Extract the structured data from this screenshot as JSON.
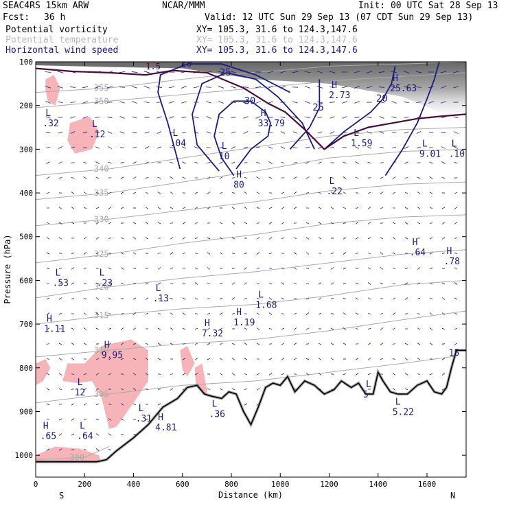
{
  "header": {
    "model": "SEAC4RS 15km ARW",
    "org": "NCAR/MMM",
    "init": "Init: 00 UTC Sat 28 Sep 13",
    "fcst_label": "Fcst:",
    "fcst_value": "36 h",
    "valid": "Valid: 12 UTC Sun 29 Sep 13 (07 CDT Sun 29 Sep 13)"
  },
  "fields": [
    {
      "name": "Potential vorticity",
      "xy": "XY= 105.3, 31.6 to 124.3,147.6",
      "color": "#000000"
    },
    {
      "name": "Potential temperature",
      "xy": "XY= 105.3, 31.6 to 124.3,147.6",
      "color": "#b8b8b8"
    },
    {
      "name": "Horizontal wind speed",
      "xy": "XY= 105.3, 31.6 to 124.3,147.6",
      "color": "#1a1a80"
    }
  ],
  "chart_data": {
    "type": "cross-section",
    "xlabel": "Distance (km)",
    "ylabel": "Pressure (hPa)",
    "xlim": [
      0,
      1760
    ],
    "ylim": [
      1050,
      100
    ],
    "x_ticks": [
      0,
      200,
      400,
      600,
      800,
      1000,
      1200,
      1400,
      1600
    ],
    "y_ticks": [
      100,
      200,
      300,
      400,
      500,
      600,
      700,
      800,
      900,
      1000
    ],
    "x_end_labels": {
      "left": "S",
      "right": "N"
    },
    "colors": {
      "wind": "#1a1a80",
      "theta": "#aaaaaa",
      "pv_line": "#4a0a3a",
      "pv_fill": "#f6b4b8",
      "terrain": "#000000",
      "labels": "#1a1a80"
    },
    "wind_speed_contours": [
      {
        "label": "20",
        "points": [
          [
            590,
            345
          ],
          [
            540,
            240
          ],
          [
            500,
            170
          ],
          [
            510,
            130
          ],
          [
            620,
            105
          ],
          [
            760,
            105
          ],
          [
            900,
            130
          ],
          [
            1040,
            170
          ]
        ]
      },
      {
        "label": "25",
        "points": [
          [
            750,
            350
          ],
          [
            660,
            290
          ],
          [
            640,
            220
          ],
          [
            680,
            150
          ],
          [
            780,
            125
          ],
          [
            900,
            140
          ],
          [
            990,
            180
          ],
          [
            1090,
            240
          ],
          [
            1140,
            300
          ]
        ]
      },
      {
        "label": "25",
        "points": [
          [
            1040,
            300
          ],
          [
            1120,
            250
          ],
          [
            1160,
            205
          ],
          [
            1160,
            140
          ]
        ]
      },
      {
        "label": "30",
        "points": [
          [
            810,
            360
          ],
          [
            760,
            320
          ],
          [
            730,
            270
          ],
          [
            750,
            220
          ],
          [
            810,
            190
          ],
          [
            880,
            190
          ],
          [
            940,
            215
          ],
          [
            960,
            240
          ],
          [
            950,
            270
          ],
          [
            880,
            300
          ],
          [
            820,
            345
          ]
        ]
      },
      {
        "label": "20",
        "points": [
          [
            1180,
            300
          ],
          [
            1260,
            260
          ],
          [
            1370,
            215
          ],
          [
            1420,
            185
          ],
          [
            1455,
            150
          ],
          [
            1470,
            110
          ]
        ]
      },
      {
        "label": "",
        "points": [
          [
            1430,
            360
          ],
          [
            1500,
            300
          ],
          [
            1560,
            240
          ],
          [
            1600,
            185
          ],
          [
            1630,
            140
          ],
          [
            1650,
            100
          ]
        ]
      }
    ],
    "wind_speed_extrema": [
      {
        "type": "H",
        "value": "33.79",
        "x": 920,
        "p": 240
      },
      {
        "type": "L",
        "value": "10",
        "x": 760,
        "p": 315
      },
      {
        "type": "H",
        "value": "80",
        "x": 820,
        "p": 380
      },
      {
        "type": "L",
        "value": ".04",
        "x": 560,
        "p": 285
      },
      {
        "type": "L",
        "value": ".22",
        "x": 1200,
        "p": 395
      },
      {
        "type": "L",
        "value": "1.59",
        "x": 1300,
        "p": 285
      },
      {
        "type": "H",
        "value": "2.73",
        "x": 1210,
        "p": 175
      },
      {
        "type": "H",
        "value": "25.63",
        "x": 1460,
        "p": 160
      },
      {
        "type": "L",
        "value": "9.01",
        "x": 1580,
        "p": 310
      },
      {
        "type": "L",
        "value": ".10",
        "x": 1700,
        "p": 310
      },
      {
        "type": "L",
        "value": ".12",
        "x": 230,
        "p": 265
      },
      {
        "type": "L",
        "value": ".32",
        "x": 40,
        "p": 240
      },
      {
        "type": "L",
        "value": ".53",
        "x": 80,
        "p": 605
      },
      {
        "type": "L",
        "value": ".23",
        "x": 260,
        "p": 605
      },
      {
        "type": "L",
        "value": ".13",
        "x": 490,
        "p": 640
      },
      {
        "type": "L",
        "value": "1.68",
        "x": 910,
        "p": 655
      },
      {
        "type": "H",
        "value": "1.19",
        "x": 820,
        "p": 695
      },
      {
        "type": "H",
        "value": "7.32",
        "x": 690,
        "p": 720
      },
      {
        "type": "H",
        "value": "1.11",
        "x": 45,
        "p": 710
      },
      {
        "type": "H",
        "value": "9.95",
        "x": 280,
        "p": 770
      },
      {
        "type": "L",
        "value": "12",
        "x": 170,
        "p": 855
      },
      {
        "type": "L",
        "value": ".31",
        "x": 420,
        "p": 915
      },
      {
        "type": "H",
        "value": "4.81",
        "x": 500,
        "p": 935
      },
      {
        "type": "L",
        "value": ".36",
        "x": 720,
        "p": 905
      },
      {
        "type": "H",
        "value": ".65",
        "x": 30,
        "p": 955
      },
      {
        "type": "L",
        "value": ".64",
        "x": 180,
        "p": 955
      },
      {
        "type": "H",
        "value": ".64",
        "x": 1540,
        "p": 535
      },
      {
        "type": "H",
        "value": ".78",
        "x": 1680,
        "p": 555
      },
      {
        "type": "L",
        "value": "5.22",
        "x": 1470,
        "p": 900
      },
      {
        "type": "L",
        "value": "5",
        "x": 1350,
        "p": 860
      },
      {
        "type": "",
        "value": "15",
        "x": 1700,
        "p": 765
      }
    ],
    "theta_contours": [
      {
        "label": "355",
        "points": [
          [
            0,
            170
          ],
          [
            300,
            160
          ],
          [
            600,
            140
          ],
          [
            800,
            128
          ],
          [
            1000,
            120
          ],
          [
            1200,
            110
          ],
          [
            1500,
            105
          ],
          [
            1760,
            100
          ]
        ]
      },
      {
        "label": "350",
        "points": [
          [
            0,
            205
          ],
          [
            300,
            190
          ],
          [
            600,
            175
          ],
          [
            900,
            160
          ],
          [
            1100,
            150
          ],
          [
            1300,
            140
          ],
          [
            1600,
            130
          ],
          [
            1760,
            125
          ]
        ]
      },
      {
        "label": "340",
        "points": [
          [
            0,
            360
          ],
          [
            300,
            345
          ],
          [
            600,
            320
          ],
          [
            900,
            295
          ],
          [
            1200,
            270
          ],
          [
            1500,
            255
          ],
          [
            1760,
            250
          ]
        ]
      },
      {
        "label": "335",
        "points": [
          [
            0,
            415
          ],
          [
            300,
            400
          ],
          [
            600,
            375
          ],
          [
            900,
            350
          ],
          [
            1200,
            320
          ],
          [
            1500,
            305
          ],
          [
            1760,
            300
          ]
        ]
      },
      {
        "label": "330",
        "points": [
          [
            0,
            475
          ],
          [
            300,
            460
          ],
          [
            600,
            440
          ],
          [
            900,
            420
          ],
          [
            1200,
            395
          ],
          [
            1500,
            380
          ],
          [
            1760,
            375
          ]
        ]
      },
      {
        "label": "325",
        "points": [
          [
            0,
            560
          ],
          [
            300,
            540
          ],
          [
            600,
            515
          ],
          [
            900,
            495
          ],
          [
            1200,
            470
          ],
          [
            1500,
            455
          ],
          [
            1760,
            450
          ]
        ]
      },
      {
        "label": "320",
        "points": [
          [
            0,
            640
          ],
          [
            300,
            615
          ],
          [
            600,
            595
          ],
          [
            900,
            580
          ],
          [
            1200,
            560
          ],
          [
            1500,
            540
          ],
          [
            1760,
            530
          ]
        ]
      },
      {
        "label": "315",
        "points": [
          [
            0,
            700
          ],
          [
            300,
            680
          ],
          [
            600,
            665
          ],
          [
            900,
            655
          ],
          [
            1200,
            635
          ],
          [
            1500,
            610
          ],
          [
            1760,
            600
          ]
        ]
      },
      {
        "label": "310",
        "points": [
          [
            0,
            775
          ],
          [
            300,
            760
          ],
          [
            600,
            745
          ],
          [
            900,
            735
          ],
          [
            1200,
            715
          ],
          [
            1500,
            690
          ],
          [
            1760,
            670
          ]
        ]
      },
      {
        "label": "305",
        "points": [
          [
            0,
            880
          ],
          [
            300,
            860
          ],
          [
            600,
            840
          ],
          [
            900,
            830
          ],
          [
            1200,
            810
          ],
          [
            1500,
            790
          ],
          [
            1760,
            770
          ]
        ]
      },
      {
        "label": "300",
        "points": [
          [
            0,
            1010
          ],
          [
            200,
            1005
          ],
          [
            300,
            980
          ]
        ]
      }
    ],
    "pv_contours": [
      {
        "label": "1.5",
        "points": [
          [
            0,
            115
          ],
          [
            150,
            122
          ],
          [
            300,
            125
          ],
          [
            450,
            130
          ],
          [
            560,
            120
          ],
          [
            700,
            125
          ],
          [
            850,
            160
          ],
          [
            950,
            195
          ],
          [
            1020,
            215
          ],
          [
            1100,
            255
          ],
          [
            1180,
            300
          ],
          [
            1260,
            270
          ],
          [
            1360,
            250
          ],
          [
            1460,
            240
          ],
          [
            1560,
            230
          ],
          [
            1650,
            225
          ],
          [
            1760,
            220
          ]
        ]
      }
    ],
    "pv_filled_regions": [
      {
        "points": [
          [
            40,
            140
          ],
          [
            75,
            130
          ],
          [
            100,
            160
          ],
          [
            80,
            200
          ],
          [
            50,
            190
          ],
          [
            40,
            165
          ]
        ]
      },
      {
        "points": [
          [
            140,
            240
          ],
          [
            220,
            225
          ],
          [
            260,
            260
          ],
          [
            230,
            300
          ],
          [
            160,
            310
          ],
          [
            130,
            280
          ]
        ]
      },
      {
        "points": [
          [
            0,
            790
          ],
          [
            40,
            780
          ],
          [
            60,
            800
          ],
          [
            30,
            830
          ],
          [
            0,
            840
          ]
        ]
      },
      {
        "points": [
          [
            270,
            750
          ],
          [
            390,
            735
          ],
          [
            460,
            760
          ],
          [
            460,
            830
          ],
          [
            400,
            880
          ],
          [
            330,
            935
          ],
          [
            300,
            940
          ],
          [
            270,
            870
          ],
          [
            230,
            830
          ],
          [
            170,
            835
          ],
          [
            110,
            830
          ],
          [
            130,
            790
          ],
          [
            200,
            790
          ]
        ]
      },
      {
        "points": [
          [
            590,
            760
          ],
          [
            620,
            750
          ],
          [
            650,
            790
          ],
          [
            620,
            820
          ],
          [
            600,
            805
          ]
        ]
      },
      {
        "points": [
          [
            650,
            800
          ],
          [
            680,
            790
          ],
          [
            700,
            850
          ],
          [
            690,
            895
          ],
          [
            660,
            880
          ]
        ]
      },
      {
        "points": [
          [
            0,
            1000
          ],
          [
            80,
            980
          ],
          [
            180,
            985
          ],
          [
            260,
            1000
          ],
          [
            270,
            1045
          ],
          [
            0,
            1045
          ]
        ]
      }
    ],
    "terrain": [
      [
        0,
        1015
      ],
      [
        250,
        1015
      ],
      [
        290,
        1010
      ],
      [
        330,
        990
      ],
      [
        400,
        960
      ],
      [
        460,
        930
      ],
      [
        520,
        890
      ],
      [
        580,
        870
      ],
      [
        620,
        845
      ],
      [
        660,
        840
      ],
      [
        690,
        860
      ],
      [
        720,
        865
      ],
      [
        760,
        870
      ],
      [
        790,
        855
      ],
      [
        820,
        860
      ],
      [
        850,
        900
      ],
      [
        880,
        930
      ],
      [
        910,
        890
      ],
      [
        940,
        845
      ],
      [
        970,
        835
      ],
      [
        1000,
        840
      ],
      [
        1030,
        820
      ],
      [
        1060,
        855
      ],
      [
        1100,
        830
      ],
      [
        1140,
        840
      ],
      [
        1180,
        860
      ],
      [
        1220,
        850
      ],
      [
        1250,
        830
      ],
      [
        1290,
        845
      ],
      [
        1320,
        835
      ],
      [
        1350,
        860
      ],
      [
        1380,
        860
      ],
      [
        1400,
        810
      ],
      [
        1420,
        830
      ],
      [
        1450,
        855
      ],
      [
        1480,
        860
      ],
      [
        1520,
        860
      ],
      [
        1560,
        840
      ],
      [
        1600,
        830
      ],
      [
        1630,
        855
      ],
      [
        1660,
        860
      ],
      [
        1680,
        845
      ],
      [
        1700,
        800
      ],
      [
        1720,
        760
      ],
      [
        1740,
        760
      ],
      [
        1760,
        760
      ]
    ],
    "stratosphere_shading": {
      "top_p": 100,
      "bottom_p": 240
    }
  }
}
